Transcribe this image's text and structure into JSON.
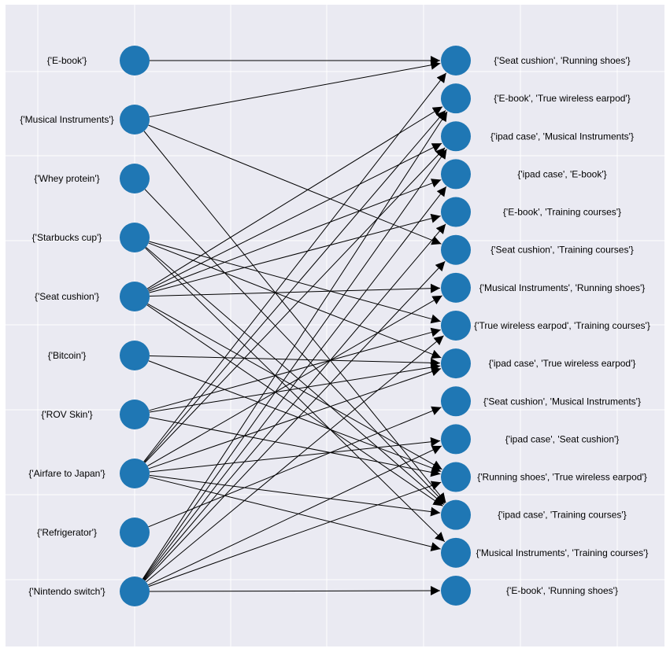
{
  "diagram": {
    "type": "bipartite-directed-graph",
    "colors": {
      "background": "#eaeaf2",
      "grid": "#ffffff",
      "node": "#1f77b4",
      "edge": "#000000"
    },
    "left_nodes": [
      "{'E-book'}",
      "{'Musical Instruments'}",
      "{'Whey protein'}",
      "{'Starbucks cup'}",
      "{'Seat cushion'}",
      "{'Bitcoin'}",
      "{'ROV Skin'}",
      "{'Airfare to Japan'}",
      "{'Refrigerator'}",
      "{'Nintendo switch'}"
    ],
    "right_nodes": [
      "{'Seat cushion', 'Running shoes'}",
      "{'E-book', 'True wireless earpod'}",
      "{'ipad case', 'Musical Instruments'}",
      "{'ipad case', 'E-book'}",
      "{'E-book', 'Training courses'}",
      "{'Seat cushion', 'Training courses'}",
      "{'Musical Instruments', 'Running shoes'}",
      "{'True wireless earpod', 'Training courses'}",
      "{'ipad case', 'True wireless earpod'}",
      "{'Seat cushion', 'Musical Instruments'}",
      "{'ipad case', 'Seat cushion'}",
      "{'Running shoes', 'True wireless earpod'}",
      "{'ipad case', 'Training courses'}",
      "{'Musical Instruments', 'Training courses'}",
      "{'E-book', 'Running shoes'}"
    ],
    "edges": [
      [
        0,
        0
      ],
      [
        1,
        0
      ],
      [
        1,
        5
      ],
      [
        1,
        12
      ],
      [
        2,
        12
      ],
      [
        3,
        7
      ],
      [
        3,
        8
      ],
      [
        3,
        12
      ],
      [
        3,
        13
      ],
      [
        4,
        1
      ],
      [
        4,
        2
      ],
      [
        4,
        3
      ],
      [
        4,
        4
      ],
      [
        4,
        6
      ],
      [
        4,
        11
      ],
      [
        4,
        12
      ],
      [
        5,
        8
      ],
      [
        5,
        11
      ],
      [
        6,
        7
      ],
      [
        6,
        8
      ],
      [
        6,
        11
      ],
      [
        7,
        0
      ],
      [
        7,
        1
      ],
      [
        7,
        2
      ],
      [
        7,
        6
      ],
      [
        7,
        8
      ],
      [
        7,
        10
      ],
      [
        7,
        12
      ],
      [
        7,
        13
      ],
      [
        8,
        9
      ],
      [
        9,
        1
      ],
      [
        9,
        2
      ],
      [
        9,
        3
      ],
      [
        9,
        4
      ],
      [
        9,
        5
      ],
      [
        9,
        7
      ],
      [
        9,
        10
      ],
      [
        9,
        11
      ],
      [
        9,
        14
      ]
    ]
  }
}
